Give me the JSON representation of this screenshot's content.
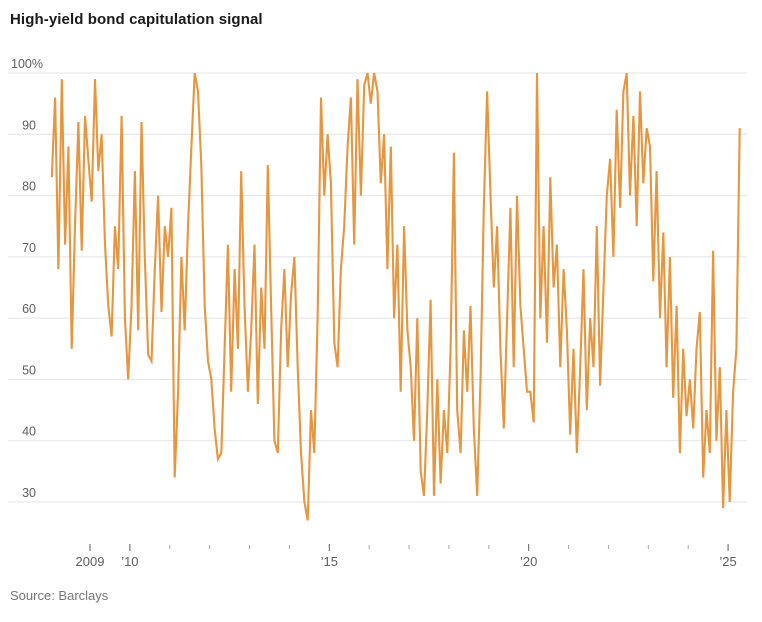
{
  "header": {
    "title": "High-yield bond capitulation signal"
  },
  "footer": {
    "source_text": "Source: Barclays"
  },
  "colors": {
    "line": "#E6963F",
    "grid": "#E4E4E4",
    "title_text": "#1A1A1A",
    "axis_label_text": "#5E5E5E",
    "minor_tick": "#A8A8A8",
    "labeled_tick": "#5E5E5E",
    "source_text": "#767676",
    "background": "#FFFFFF"
  },
  "chart_data": {
    "type": "line",
    "title": "High-yield bond capitulation signal",
    "series_name": "High-yield bond capitulation signal (%)",
    "x_unit": "year",
    "start_year": 2008,
    "samples_per_year": 12,
    "x_range": [
      2008.0,
      2025.35
    ],
    "ylim": [
      25,
      100
    ],
    "grid": true,
    "legend": "none",
    "y_axis": {
      "ticks": [
        100,
        90,
        80,
        70,
        60,
        50,
        40,
        30
      ],
      "tick_labels": [
        "100%",
        "90",
        "80",
        "70",
        "60",
        "50",
        "40",
        "30"
      ]
    },
    "x_axis": {
      "tick_years": [
        2009,
        2010,
        2011,
        2012,
        2013,
        2014,
        2015,
        2016,
        2017,
        2018,
        2019,
        2020,
        2021,
        2022,
        2023,
        2024,
        2025
      ],
      "labeled_ticks": [
        {
          "year": 2009,
          "label": "2009"
        },
        {
          "year": 2010,
          "label": "’10"
        },
        {
          "year": 2015,
          "label": "’15"
        },
        {
          "year": 2020,
          "label": "’20"
        },
        {
          "year": 2025,
          "label": "’25"
        }
      ]
    },
    "values": [
      83,
      96,
      68,
      99,
      72,
      88,
      55,
      75,
      92,
      71,
      93,
      86,
      79,
      99,
      84,
      90,
      72,
      62,
      57,
      75,
      68,
      93,
      60,
      50,
      62,
      84,
      58,
      92,
      70,
      54,
      53,
      68,
      80,
      61,
      75,
      70,
      78,
      34,
      48,
      70,
      58,
      75,
      88,
      100,
      97,
      85,
      62,
      53,
      50,
      42,
      37,
      38,
      55,
      72,
      48,
      68,
      55,
      84,
      62,
      48,
      58,
      72,
      46,
      65,
      55,
      85,
      62,
      40,
      38,
      58,
      68,
      52,
      64,
      70,
      52,
      38,
      30,
      27,
      45,
      38,
      60,
      96,
      80,
      90,
      82,
      56,
      52,
      68,
      75,
      88,
      96,
      72,
      99,
      80,
      98,
      100,
      95,
      100,
      97,
      82,
      90,
      68,
      88,
      60,
      72,
      48,
      75,
      58,
      52,
      40,
      60,
      35,
      31,
      45,
      63,
      31,
      50,
      33,
      45,
      38,
      55,
      87,
      45,
      38,
      58,
      48,
      62,
      42,
      31,
      50,
      78,
      97,
      80,
      65,
      75,
      55,
      42,
      60,
      78,
      52,
      80,
      62,
      55,
      48,
      48,
      43,
      100,
      60,
      75,
      56,
      83,
      65,
      72,
      52,
      68,
      58,
      41,
      55,
      38,
      52,
      68,
      45,
      60,
      52,
      75,
      49,
      65,
      80,
      86,
      70,
      94,
      78,
      97,
      100,
      80,
      93,
      75,
      97,
      82,
      91,
      88,
      66,
      84,
      60,
      74,
      52,
      70,
      47,
      62,
      38,
      55,
      44,
      50,
      42,
      55,
      61,
      34,
      45,
      38,
      71,
      40,
      52,
      29,
      45,
      30,
      48,
      55,
      91
    ]
  }
}
